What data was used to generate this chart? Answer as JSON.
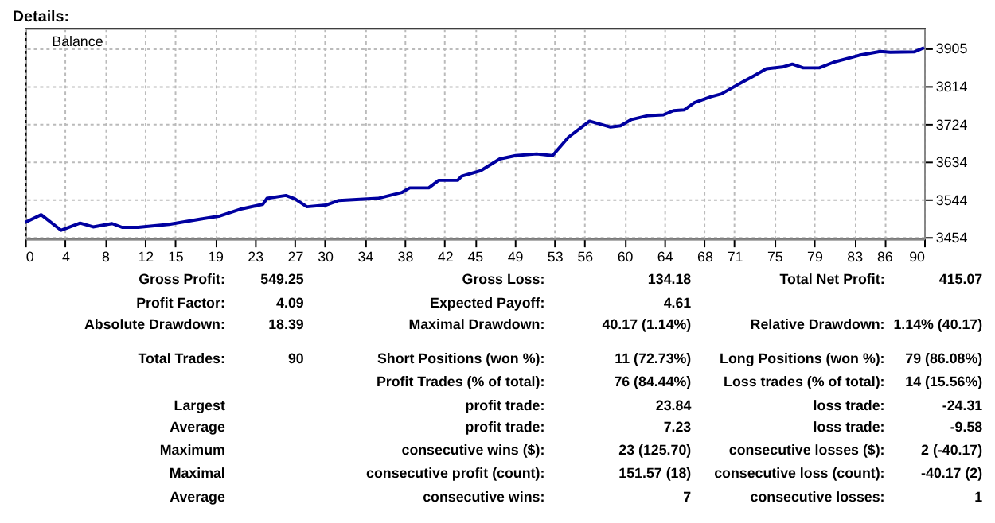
{
  "chart_data": {
    "type": "line",
    "title": "Details:",
    "x": [
      0,
      1.6,
      3.6,
      5.5,
      6.8,
      8.7,
      9.7,
      11.3,
      14.4,
      17.6,
      19.5,
      21.5,
      23.8,
      24.2,
      26.1,
      27,
      28.2,
      30.1,
      31.4,
      35.3,
      37.7,
      38.5,
      40.4,
      41.4,
      43.3,
      43.7,
      45.6,
      47.5,
      49.1,
      51.2,
      52.8,
      54.4,
      56.5,
      58.6,
      59.6,
      60.7,
      62.3,
      63.9,
      64.9,
      66,
      67,
      68.6,
      69.7,
      71.8,
      72.8,
      74.2,
      75.8,
      76.8,
      77.9,
      79.5,
      81,
      83.5,
      85.6,
      86.6,
      89,
      90
    ],
    "series": [
      {
        "name": "Balance",
        "color": "#0000a0",
        "values": [
          3489,
          3507,
          3470,
          3487,
          3478,
          3486,
          3477,
          3477,
          3484,
          3497,
          3504,
          3520,
          3532,
          3546,
          3553,
          3545,
          3526,
          3530,
          3541,
          3546,
          3560,
          3571,
          3571,
          3589,
          3589,
          3599,
          3612,
          3640,
          3648,
          3652,
          3648,
          3692,
          3730,
          3716,
          3719,
          3734,
          3743,
          3745,
          3755,
          3757,
          3774,
          3788,
          3795,
          3823,
          3836,
          3855,
          3859,
          3866,
          3857,
          3857,
          3871,
          3887,
          3896,
          3894,
          3895,
          3905
        ]
      }
    ],
    "xlim": [
      0,
      90
    ],
    "xticks": [
      0,
      4,
      8,
      12,
      15,
      19,
      23,
      27,
      30,
      34,
      38,
      42,
      45,
      49,
      53,
      56,
      60,
      64,
      68,
      71,
      75,
      79,
      83,
      86,
      90
    ],
    "ylim": [
      3450,
      3952
    ],
    "yticks": [
      3454,
      3544,
      3634,
      3724,
      3814,
      3905
    ],
    "grid": true,
    "legend": "top left",
    "annotations": [
      "Gross Profit:",
      "549.25",
      "Gross Loss:",
      "134.18",
      "Total Net Profit:",
      "415.07",
      "Profit Factor:",
      "4.09",
      "Expected Payoff:",
      "4.61",
      "Absolute Drawdown:",
      "18.39",
      "Maximal Drawdown:",
      "40.17 (1.14%)",
      "Relative Drawdown:",
      "1.14% (40.17)",
      "Total Trades:",
      "90",
      "Short Positions (won %):",
      "11 (72.73%)",
      "Long Positions (won %):",
      "79 (86.08%)",
      "Profit Trades (% of total):",
      "76 (84.44%)",
      "Loss trades (% of total):",
      "14 (15.56%)",
      "Largest",
      "profit trade:",
      "23.84",
      "loss trade:",
      "-24.31",
      "Average",
      "profit trade:",
      "7.23",
      "loss trade:",
      "-9.58",
      "Maximum",
      "consecutive wins ($):",
      "23 (125.70)",
      "consecutive losses ($):",
      "2 (-40.17)",
      "Maximal",
      "consecutive profit (count):",
      "151.57 (18)",
      "consecutive loss (count):",
      "-40.17 (2)",
      "Average",
      "consecutive wins:",
      "7",
      "consecutive losses:",
      "1"
    ]
  }
}
